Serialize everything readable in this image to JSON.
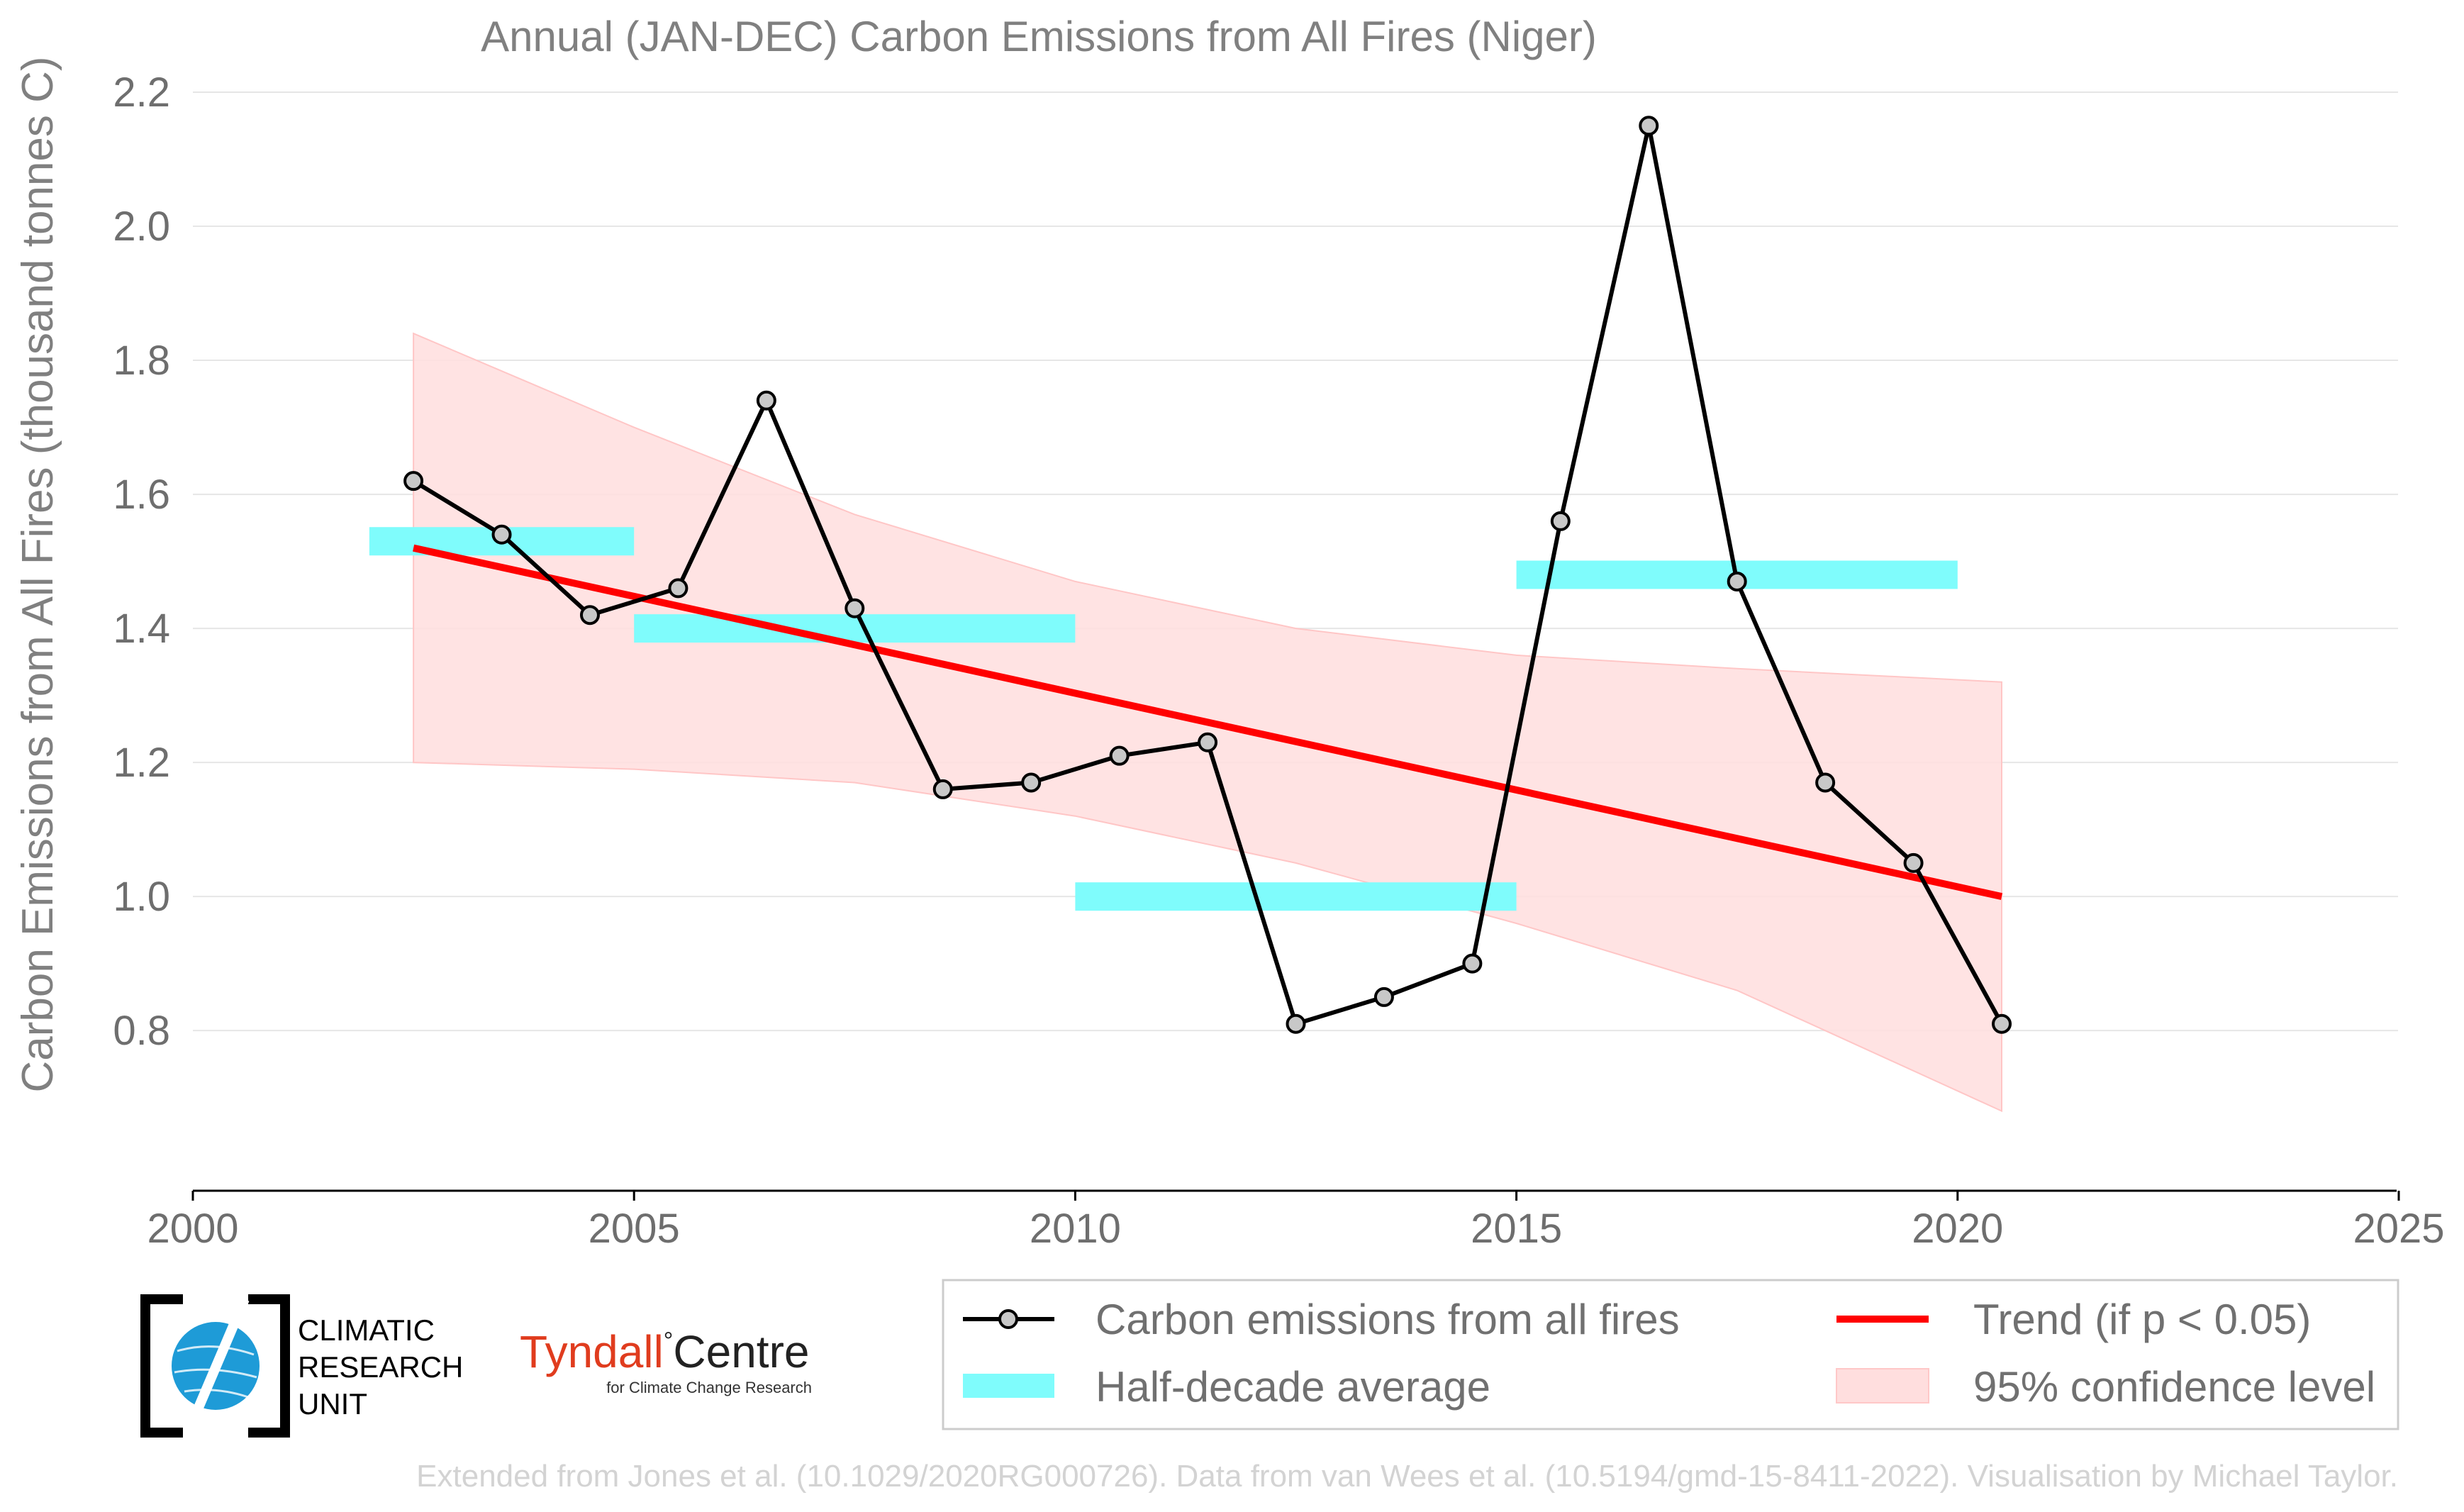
{
  "chart_data": {
    "type": "line",
    "title": "Annual (JAN-DEC) Carbon Emissions from All Fires (Niger)",
    "ylabel": "Carbon Emissions from All Fires (thousand tonnes C)",
    "xlabel": "",
    "xlim": [
      2000,
      2025
    ],
    "ylim": [
      0.56,
      2.2
    ],
    "x_ticks": [
      "2000",
      "2005",
      "2010",
      "2015",
      "2020",
      "2025"
    ],
    "y_ticks": [
      "0.8",
      "1.0",
      "1.2",
      "1.4",
      "1.6",
      "1.8",
      "2.0",
      "2.2"
    ],
    "grid": "horizontal",
    "series": [
      {
        "name": "Carbon emissions from all fires",
        "x": [
          2002.5,
          2003.5,
          2004.5,
          2005.5,
          2006.5,
          2007.5,
          2008.5,
          2009.5,
          2010.5,
          2011.5,
          2012.5,
          2013.5,
          2014.5,
          2015.5,
          2016.5,
          2017.5,
          2018.5,
          2019.5,
          2020.5
        ],
        "values": [
          1.62,
          1.54,
          1.42,
          1.46,
          1.74,
          1.43,
          1.16,
          1.17,
          1.21,
          1.23,
          0.81,
          0.85,
          0.9,
          1.56,
          2.15,
          1.47,
          1.17,
          1.05,
          0.81
        ],
        "color": "#000000",
        "marker_fill": "#c8c8c8"
      }
    ],
    "half_decade_average": {
      "name": "Half-decade average",
      "color": "#7ffcfc",
      "segments": [
        {
          "x0": 2002,
          "x1": 2005,
          "value": 1.53
        },
        {
          "x0": 2005,
          "x1": 2010,
          "value": 1.4
        },
        {
          "x0": 2010,
          "x1": 2015,
          "value": 1.0
        },
        {
          "x0": 2015,
          "x1": 2020,
          "value": 1.48
        }
      ]
    },
    "trend": {
      "name": "Trend (if p < 0.05)",
      "color": "#ff0000",
      "x": [
        2002.5,
        2020.5
      ],
      "values": [
        1.52,
        1.0
      ]
    },
    "confidence_band": {
      "name": "95% confidence level",
      "color": "#ffdede",
      "x": [
        2002.5,
        2005,
        2007.5,
        2010,
        2012.5,
        2015,
        2017.5,
        2020.5
      ],
      "upper": [
        1.84,
        1.7,
        1.57,
        1.47,
        1.4,
        1.36,
        1.34,
        1.32
      ],
      "lower": [
        1.2,
        1.19,
        1.17,
        1.12,
        1.05,
        0.96,
        0.86,
        0.68
      ]
    },
    "legend_placement": "bottom-right"
  },
  "legend": {
    "items": [
      {
        "label": "Carbon emissions from all fires"
      },
      {
        "label": "Trend (if p < 0.05)"
      },
      {
        "label": "Half-decade average"
      },
      {
        "label": "95% confidence level"
      }
    ]
  },
  "logos": {
    "cru_line1": "CLIMATIC",
    "cru_line2": "RESEARCH",
    "cru_line3": "UNIT",
    "tyndall_word1": "Tyndall",
    "tyndall_degree": "°",
    "tyndall_word2": "Centre",
    "tyndall_sub": "for Climate Change Research"
  },
  "credit": "Extended from Jones et al. (10.1029/2020RG000726). Data from van Wees et al. (10.5194/gmd-15-8411-2022). Visualisation by Michael Taylor."
}
